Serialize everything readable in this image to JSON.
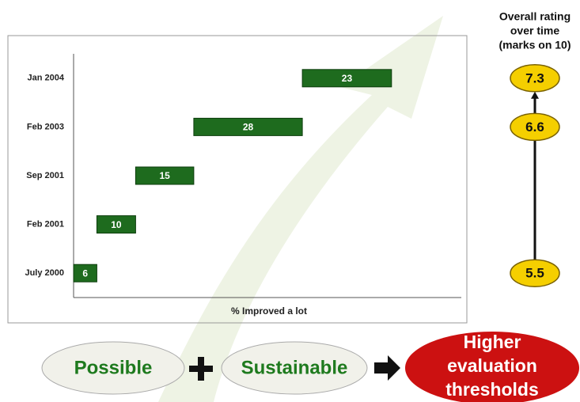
{
  "chart_data": {
    "type": "waterfall",
    "categories": [
      "July 2000",
      "Feb 2001",
      "Sep 2001",
      "Feb 2003",
      "Jan 2004"
    ],
    "values": [
      6,
      10,
      15,
      28,
      23
    ],
    "color": "#1e6b1e",
    "xlabel": "% Improved a lot",
    "xlim": [
      0,
      100
    ],
    "ratings": {
      "title": [
        "Overall rating",
        "over time",
        "(marks on 10)"
      ],
      "values": [
        5.5,
        null,
        null,
        6.6,
        7.3
      ],
      "color": "#f5cf00"
    }
  },
  "footer": {
    "terms": [
      "Possible",
      "Sustainable"
    ],
    "result": [
      "Higher",
      "evaluation",
      "thresholds"
    ]
  }
}
